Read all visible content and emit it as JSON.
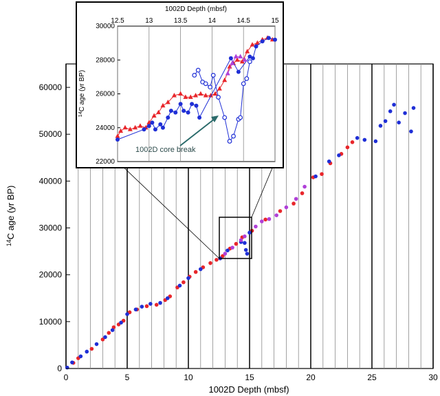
{
  "chart_data": [
    {
      "type": "scatter",
      "xlabel": "1002D Depth  (mbsf)",
      "ylabel_base": "C age (yr BP)",
      "ylabel_sup": "14",
      "xlim": [
        0,
        30
      ],
      "ylim": [
        0,
        65000
      ],
      "xticks": [
        0,
        5,
        10,
        15,
        20,
        25,
        30
      ],
      "yticks": [
        0,
        10000,
        20000,
        30000,
        40000,
        50000,
        60000
      ],
      "colors": {
        "red": "#e8262b",
        "blue": "#1f2fd6",
        "purple": "#b040d8"
      },
      "series": [
        {
          "name": "",
          "color": "red",
          "points": [
            [
              0.6,
              1200
            ],
            [
              1.0,
              2200
            ],
            [
              2.1,
              4200
            ],
            [
              3.0,
              6200
            ],
            [
              3.5,
              7600
            ],
            [
              3.9,
              8800
            ],
            [
              4.3,
              9400
            ],
            [
              4.7,
              10200
            ],
            [
              5.2,
              12000
            ],
            [
              5.8,
              12600
            ],
            [
              6.6,
              13300
            ],
            [
              7.4,
              13600
            ],
            [
              8.1,
              14600
            ],
            [
              8.5,
              15400
            ],
            [
              9.1,
              17300
            ],
            [
              9.6,
              18400
            ],
            [
              10.1,
              19600
            ],
            [
              10.6,
              20600
            ],
            [
              11.2,
              21600
            ],
            [
              11.8,
              22500
            ],
            [
              12.3,
              23200
            ],
            [
              12.8,
              24000
            ],
            [
              13.4,
              25600
            ],
            [
              13.9,
              26600
            ],
            [
              14.4,
              28000
            ],
            [
              15.2,
              29400
            ],
            [
              16.3,
              31800
            ],
            [
              17.5,
              33600
            ],
            [
              18.6,
              35200
            ],
            [
              19.3,
              37400
            ],
            [
              20.2,
              40800
            ],
            [
              20.9,
              41500
            ],
            [
              21.6,
              43800
            ],
            [
              22.5,
              45800
            ],
            [
              23.0,
              47200
            ],
            [
              23.4,
              48300
            ]
          ]
        },
        {
          "name": "",
          "color": "blue",
          "points": [
            [
              0.1,
              200
            ],
            [
              0.5,
              1300
            ],
            [
              1.2,
              2600
            ],
            [
              1.7,
              3600
            ],
            [
              2.5,
              5200
            ],
            [
              3.2,
              6700
            ],
            [
              3.8,
              8200
            ],
            [
              4.5,
              9800
            ],
            [
              5.0,
              11600
            ],
            [
              5.7,
              12600
            ],
            [
              6.2,
              13200
            ],
            [
              6.9,
              13800
            ],
            [
              7.7,
              14000
            ],
            [
              8.3,
              15000
            ],
            [
              9.3,
              17700
            ],
            [
              10.0,
              19300
            ],
            [
              11.0,
              21200
            ],
            [
              12.6,
              23500
            ],
            [
              13.2,
              25200
            ],
            [
              14.3,
              27000
            ],
            [
              14.6,
              26800
            ],
            [
              14.7,
              25300
            ],
            [
              14.8,
              24500
            ],
            [
              15.0,
              29000
            ],
            [
              20.4,
              41000
            ],
            [
              21.5,
              44200
            ],
            [
              22.3,
              45500
            ],
            [
              23.8,
              49200
            ],
            [
              24.4,
              48800
            ],
            [
              25.3,
              48500
            ],
            [
              25.7,
              51800
            ],
            [
              26.1,
              52800
            ],
            [
              26.5,
              54900
            ],
            [
              26.8,
              56300
            ],
            [
              27.2,
              52500
            ],
            [
              27.7,
              54500
            ],
            [
              28.2,
              50600
            ],
            [
              28.4,
              55600
            ]
          ]
        },
        {
          "name": "",
          "color": "purple",
          "points": [
            [
              13.0,
              24500
            ],
            [
              13.6,
              25800
            ],
            [
              14.3,
              27400
            ],
            [
              14.6,
              28200
            ],
            [
              15.5,
              30300
            ],
            [
              16.0,
              31400
            ],
            [
              16.6,
              31900
            ],
            [
              17.2,
              32700
            ],
            [
              18.0,
              34400
            ],
            [
              18.8,
              36200
            ],
            [
              19.5,
              38800
            ]
          ]
        }
      ]
    },
    {
      "type": "line",
      "title": "1002D Depth (mbsf)",
      "xlim": [
        12.5,
        15
      ],
      "ylim": [
        22000,
        30000
      ],
      "xticks": [
        12.5,
        13,
        13.5,
        14,
        14.5,
        15
      ],
      "xtick_labels": [
        "12.5",
        "13",
        "13.5",
        "14",
        "14.5",
        "15"
      ],
      "yticks": [
        22000,
        24000,
        26000,
        28000,
        30000
      ],
      "ylabel_base": "C age (yr BP)",
      "ylabel_sup": "14",
      "annotation": "1002D core break",
      "series": [
        {
          "name": "",
          "color": "red",
          "marker": "triangle",
          "points": [
            [
              12.5,
              23500
            ],
            [
              12.55,
              23800
            ],
            [
              12.62,
              24000
            ],
            [
              12.7,
              23900
            ],
            [
              12.78,
              24000
            ],
            [
              12.86,
              24100
            ],
            [
              12.95,
              24000
            ],
            [
              13.0,
              24300
            ],
            [
              13.08,
              24700
            ],
            [
              13.15,
              24900
            ],
            [
              13.22,
              25300
            ],
            [
              13.3,
              25500
            ],
            [
              13.4,
              25900
            ],
            [
              13.5,
              26000
            ],
            [
              13.58,
              25800
            ],
            [
              13.66,
              25800
            ],
            [
              13.74,
              25900
            ],
            [
              13.82,
              26000
            ],
            [
              13.9,
              25900
            ],
            [
              13.98,
              25900
            ],
            [
              14.05,
              26000
            ],
            [
              14.12,
              26300
            ],
            [
              14.2,
              26800
            ],
            [
              14.28,
              27600
            ],
            [
              14.34,
              27800
            ],
            [
              14.4,
              28000
            ],
            [
              14.48,
              27900
            ],
            [
              14.56,
              28500
            ],
            [
              14.64,
              28900
            ],
            [
              14.72,
              29000
            ],
            [
              14.8,
              29200
            ],
            [
              14.88,
              29300
            ],
            [
              14.96,
              29200
            ]
          ]
        },
        {
          "name": "",
          "color": "blue",
          "marker": "circle",
          "points": [
            [
              12.5,
              23300
            ],
            [
              12.92,
              23900
            ],
            [
              13.0,
              24100
            ],
            [
              13.05,
              24300
            ],
            [
              13.1,
              23900
            ],
            [
              13.18,
              24200
            ],
            [
              13.22,
              24000
            ],
            [
              13.3,
              24600
            ],
            [
              13.35,
              25000
            ],
            [
              13.42,
              24900
            ],
            [
              13.5,
              25400
            ],
            [
              13.55,
              25000
            ],
            [
              13.62,
              24900
            ],
            [
              13.68,
              25400
            ],
            [
              13.75,
              25300
            ],
            [
              13.8,
              24600
            ],
            [
              14.3,
              28100
            ],
            [
              14.42,
              27300
            ],
            [
              14.6,
              28200
            ],
            [
              14.65,
              28100
            ],
            [
              14.7,
              28800
            ],
            [
              14.8,
              29100
            ],
            [
              14.9,
              29300
            ],
            [
              15.0,
              29200
            ]
          ]
        },
        {
          "name": "",
          "color": "blue",
          "marker": "open-circle",
          "points": [
            [
              13.72,
              27100
            ],
            [
              13.78,
              27400
            ],
            [
              13.85,
              26700
            ],
            [
              13.9,
              26600
            ],
            [
              13.97,
              26400
            ],
            [
              14.02,
              27100
            ],
            [
              14.1,
              25800
            ],
            [
              14.2,
              24600
            ],
            [
              14.28,
              23200
            ],
            [
              14.34,
              23500
            ],
            [
              14.42,
              24500
            ],
            [
              14.45,
              24600
            ],
            [
              14.5,
              26600
            ],
            [
              14.55,
              26900
            ],
            [
              14.6,
              27900
            ]
          ]
        },
        {
          "name": "",
          "color": "purple",
          "marker": "triangle",
          "points": [
            [
              14.25,
              27200
            ],
            [
              14.32,
              27800
            ],
            [
              14.38,
              28200
            ],
            [
              14.45,
              28200
            ],
            [
              14.52,
              28000
            ]
          ]
        }
      ]
    }
  ]
}
